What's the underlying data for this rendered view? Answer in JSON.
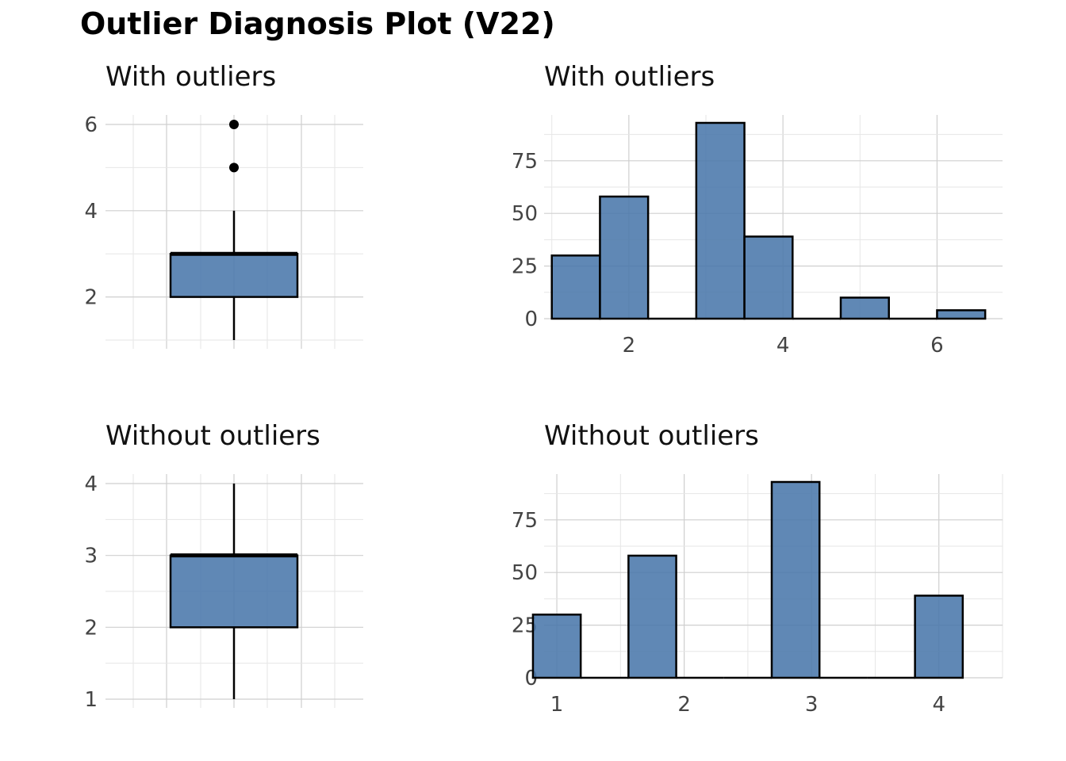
{
  "title": "Outlier Diagnosis Plot (V22)",
  "colors": {
    "fill": "#4a78ab",
    "stroke": "#000000"
  },
  "chart_data": [
    {
      "id": "box-with",
      "type": "box",
      "title": "With outliers",
      "ylim": [
        1,
        6
      ],
      "yticks": [
        2,
        4,
        6
      ],
      "ytick_labels": [
        "2",
        "4",
        "6"
      ],
      "box": {
        "min": 1,
        "q1": 2,
        "median": 3,
        "q3": 3,
        "max": 4
      },
      "outliers": [
        5,
        6
      ]
    },
    {
      "id": "hist-with",
      "type": "bar",
      "title": "With outliers",
      "xlim": [
        0.9,
        6.85
      ],
      "ylim": [
        0,
        93
      ],
      "xticks": [
        2,
        4,
        6
      ],
      "xtick_labels": [
        "2",
        "4",
        "6"
      ],
      "yticks": [
        0,
        25,
        50,
        75
      ],
      "ytick_labels": [
        "0",
        "25",
        "50",
        "75"
      ],
      "bins": [
        {
          "x0": 1.0,
          "x1": 1.625,
          "count": 30
        },
        {
          "x0": 1.625,
          "x1": 2.25,
          "count": 58
        },
        {
          "x0": 2.25,
          "x1": 2.875,
          "count": 0
        },
        {
          "x0": 2.875,
          "x1": 3.5,
          "count": 93
        },
        {
          "x0": 3.5,
          "x1": 4.125,
          "count": 39
        },
        {
          "x0": 4.125,
          "x1": 4.75,
          "count": 0
        },
        {
          "x0": 4.75,
          "x1": 5.375,
          "count": 10
        },
        {
          "x0": 5.375,
          "x1": 6.0,
          "count": 0
        },
        {
          "x0": 6.0,
          "x1": 6.625,
          "count": 4
        }
      ]
    },
    {
      "id": "box-without",
      "type": "box",
      "title": "Without outliers",
      "ylim": [
        1,
        4
      ],
      "yticks": [
        1,
        2,
        3,
        4
      ],
      "ytick_labels": [
        "1",
        "2",
        "3",
        "4"
      ],
      "box": {
        "min": 1,
        "q1": 2,
        "median": 3,
        "q3": 3,
        "max": 4
      },
      "outliers": []
    },
    {
      "id": "hist-without",
      "type": "bar",
      "title": "Without outliers",
      "xlim": [
        0.9,
        4.5
      ],
      "ylim": [
        0,
        93
      ],
      "xticks": [
        1,
        2,
        3,
        4
      ],
      "xtick_labels": [
        "1",
        "2",
        "3",
        "4"
      ],
      "yticks": [
        0,
        25,
        50,
        75
      ],
      "ytick_labels": [
        "0",
        "25",
        "50",
        "75"
      ],
      "bins": [
        {
          "x0": 0.8125,
          "x1": 1.1875,
          "count": 30
        },
        {
          "x0": 1.1875,
          "x1": 1.5625,
          "count": 0
        },
        {
          "x0": 1.5625,
          "x1": 1.9375,
          "count": 58
        },
        {
          "x0": 1.9375,
          "x1": 2.3125,
          "count": 0
        },
        {
          "x0": 2.3125,
          "x1": 2.6875,
          "count": 0
        },
        {
          "x0": 2.6875,
          "x1": 3.0625,
          "count": 93
        },
        {
          "x0": 3.0625,
          "x1": 3.4375,
          "count": 0
        },
        {
          "x0": 3.4375,
          "x1": 3.8125,
          "count": 0
        },
        {
          "x0": 3.8125,
          "x1": 4.1875,
          "count": 39
        }
      ]
    }
  ]
}
